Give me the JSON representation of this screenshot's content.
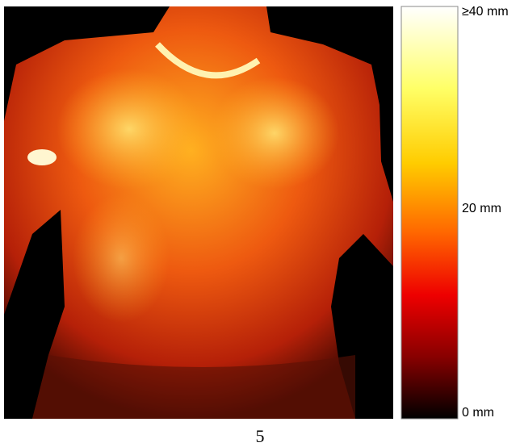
{
  "figure": {
    "colorbar": {
      "labels": [
        "≥40 mm",
        "20 mm",
        "0 mm"
      ]
    },
    "caption": "5"
  }
}
